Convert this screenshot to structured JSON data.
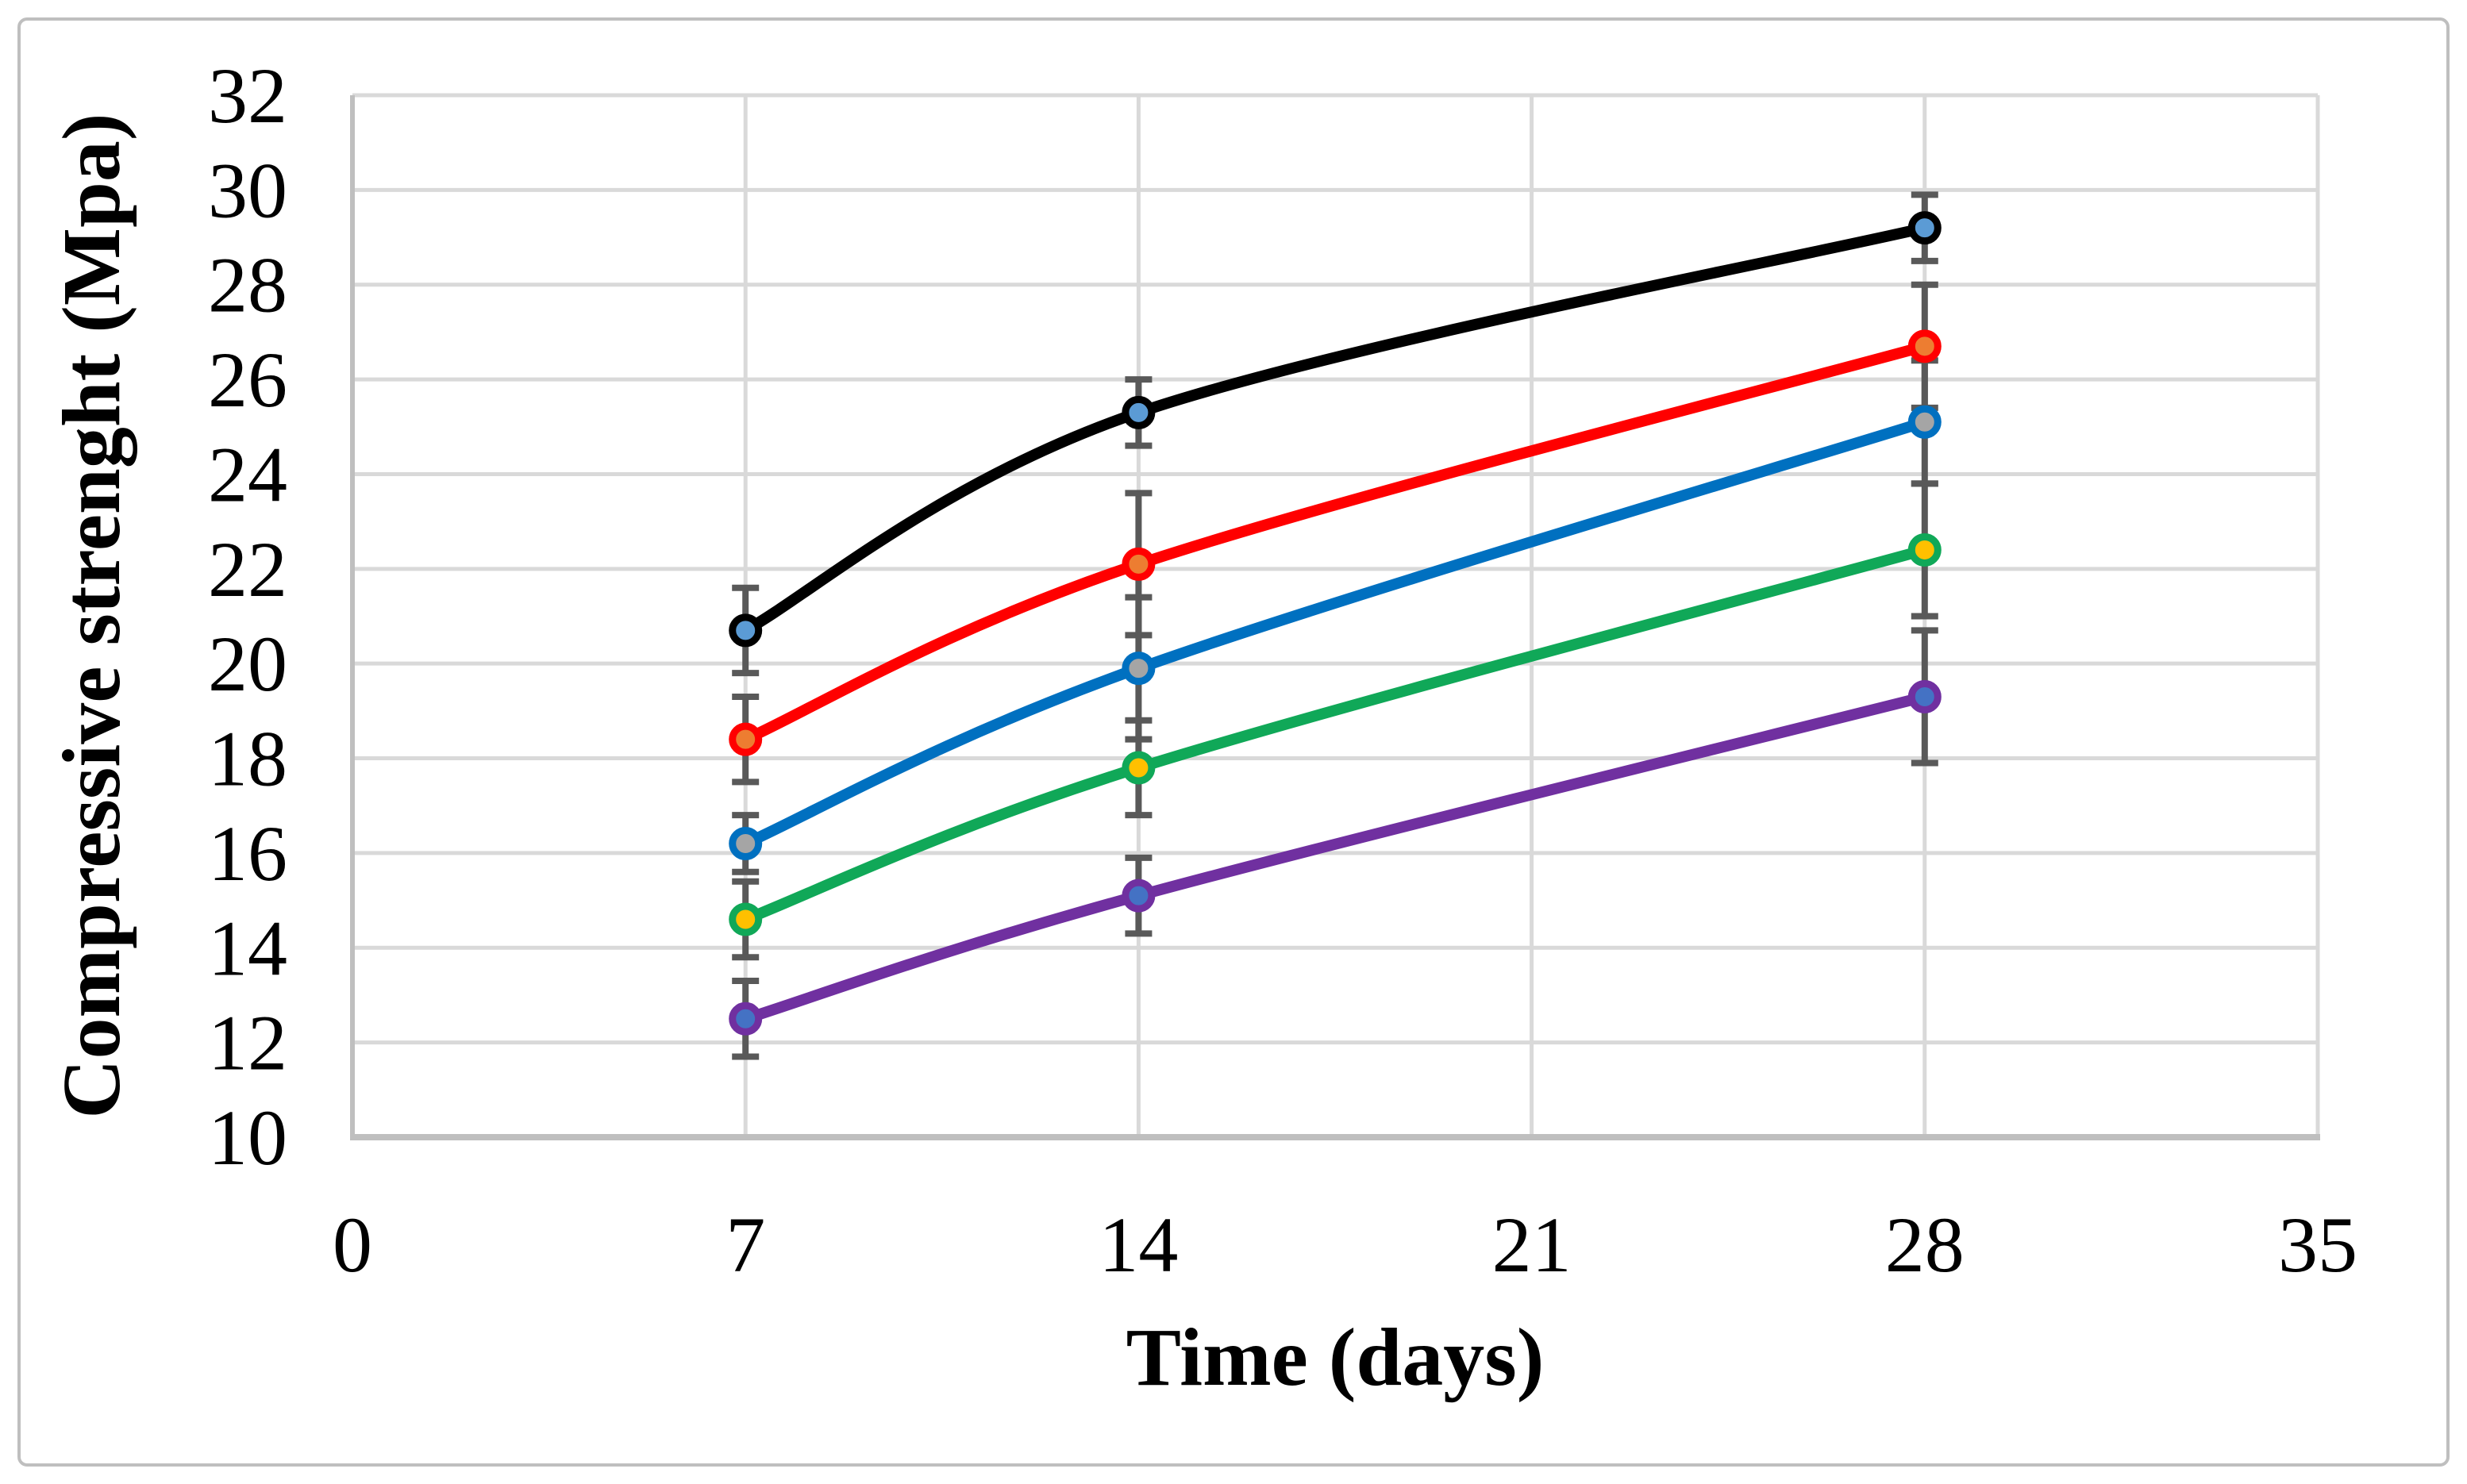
{
  "figure": {
    "background": "#FFFFFF",
    "border_color": "#BFBFBF"
  },
  "chart_data": {
    "type": "line",
    "title": "",
    "xlabel": "Time (days)",
    "ylabel": "Compressive strenght (Mpa)",
    "x": [
      7,
      14,
      28
    ],
    "xlim": [
      0,
      35
    ],
    "ylim": [
      10,
      32
    ],
    "x_ticks": [
      "0",
      "7",
      "14",
      "21",
      "28",
      "35"
    ],
    "y_ticks": [
      "32",
      "30",
      "28",
      "26",
      "24",
      "22",
      "20",
      "18",
      "16",
      "14",
      "12",
      "10"
    ],
    "grid": true,
    "legend": "none",
    "gridline_color": "#D9D9D9",
    "axis_line_color": "#BFBFBF",
    "error_bar_color": "#595959",
    "series": [
      {
        "name": "black",
        "line_color": "#000000",
        "marker_fill": "#5B9BD5",
        "values": [
          20.7,
          25.3,
          29.2
        ],
        "errors": [
          0.9,
          0.7,
          0.7
        ]
      },
      {
        "name": "red",
        "line_color": "#FF0000",
        "marker_fill": "#ED7D31",
        "values": [
          18.4,
          22.1,
          26.7
        ],
        "errors": [
          0.9,
          1.5,
          1.3
        ]
      },
      {
        "name": "blue",
        "line_color": "#0070C0",
        "marker_fill": "#A5A5A5",
        "values": [
          16.2,
          19.9,
          25.1
        ],
        "errors": [
          0.6,
          1.5,
          1.3
        ]
      },
      {
        "name": "green",
        "line_color": "#10A858",
        "marker_fill": "#FFC000",
        "values": [
          14.6,
          17.8,
          22.4
        ],
        "errors": [
          0.8,
          1.0,
          1.4
        ]
      },
      {
        "name": "purple",
        "line_color": "#7030A0",
        "marker_fill": "#4472C4",
        "values": [
          12.5,
          15.1,
          19.3
        ],
        "errors": [
          0.8,
          0.8,
          1.4
        ]
      }
    ]
  }
}
